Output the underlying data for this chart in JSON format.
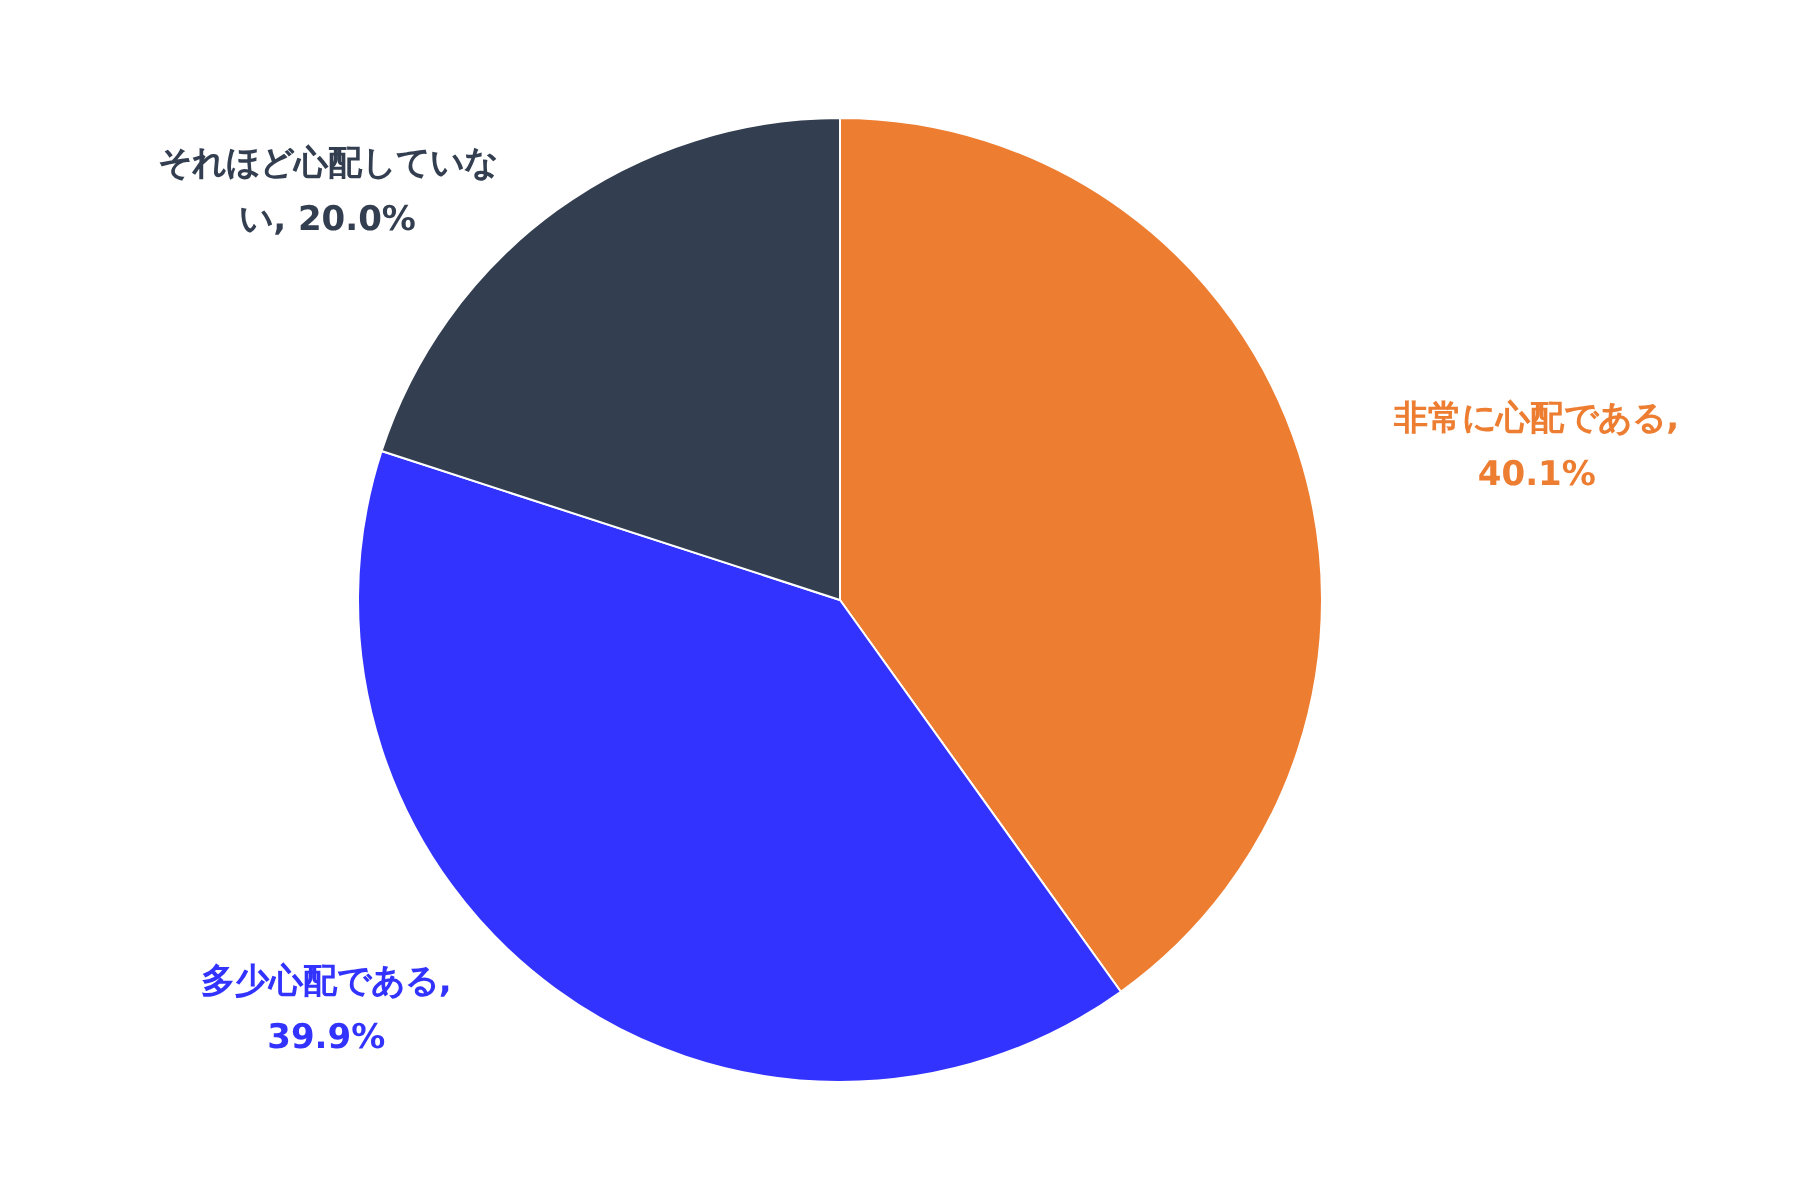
{
  "chart_data": {
    "type": "pie",
    "categories": [
      "非常に心配である",
      "多少心配である",
      "それほど心配していない"
    ],
    "values": [
      40.1,
      39.9,
      20.0
    ],
    "value_labels": [
      ", 40.1%",
      ", 39.9%",
      ", 20.0%"
    ],
    "colors": [
      "#ed7d31",
      "#3333ff",
      "#333f50"
    ]
  }
}
